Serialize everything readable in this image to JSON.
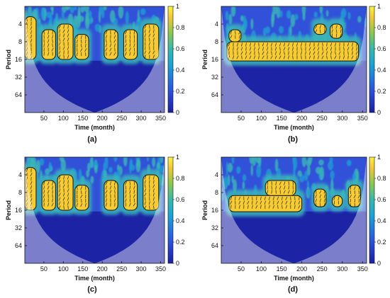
{
  "chart_data": [
    {
      "type": "heatmap",
      "panel_label": "(a)",
      "xlabel": "Time (month)",
      "ylabel": "Period",
      "xlim": [
        1,
        360
      ],
      "ylim": [
        2,
        128
      ],
      "y_scale": "log2",
      "y_reversed": true,
      "x_ticks": [
        50,
        100,
        150,
        200,
        250,
        300,
        350
      ],
      "y_ticks": [
        4,
        8,
        16,
        32,
        64
      ],
      "colorbar": {
        "min": 0,
        "max": 1,
        "ticks": [
          0,
          0.2,
          0.4,
          0.6,
          0.8,
          1
        ]
      },
      "cone_of_influence": true,
      "high_power_band_period": [
        4,
        16
      ],
      "high_power_regions": [
        {
          "x": [
            1,
            30
          ],
          "period": [
            3,
            16
          ]
        },
        {
          "x": [
            45,
            80
          ],
          "period": [
            5,
            16
          ]
        },
        {
          "x": [
            85,
            125
          ],
          "period": [
            4,
            16
          ]
        },
        {
          "x": [
            130,
            165
          ],
          "period": [
            6,
            16
          ]
        },
        {
          "x": [
            205,
            240
          ],
          "period": [
            5,
            16
          ]
        },
        {
          "x": [
            255,
            290
          ],
          "period": [
            5,
            16
          ]
        },
        {
          "x": [
            305,
            345
          ],
          "period": [
            4,
            16
          ]
        }
      ]
    },
    {
      "type": "heatmap",
      "panel_label": "(b)",
      "xlabel": "Time (month)",
      "ylabel": "Period",
      "xlim": [
        1,
        360
      ],
      "ylim": [
        2,
        128
      ],
      "y_scale": "log2",
      "y_reversed": true,
      "x_ticks": [
        50,
        100,
        150,
        200,
        250,
        300,
        350
      ],
      "y_ticks": [
        4,
        8,
        16,
        32,
        64
      ],
      "colorbar": {
        "min": 0,
        "max": 1,
        "ticks": [
          0,
          0.2,
          0.4,
          0.6,
          0.8,
          1
        ]
      },
      "cone_of_influence": true,
      "high_power_band_period": [
        8,
        16
      ],
      "high_power_regions": [
        {
          "x": [
            15,
            340
          ],
          "period": [
            8,
            17
          ]
        },
        {
          "x": [
            20,
            50
          ],
          "period": [
            5,
            8
          ]
        },
        {
          "x": [
            230,
            260
          ],
          "period": [
            4,
            6
          ]
        },
        {
          "x": [
            270,
            300
          ],
          "period": [
            4,
            7
          ]
        }
      ]
    },
    {
      "type": "heatmap",
      "panel_label": "(c)",
      "xlabel": "Time (month)",
      "ylabel": "Period",
      "xlim": [
        1,
        360
      ],
      "ylim": [
        2,
        128
      ],
      "y_scale": "log2",
      "y_reversed": true,
      "x_ticks": [
        50,
        100,
        150,
        200,
        250,
        300,
        350
      ],
      "y_ticks": [
        4,
        8,
        16,
        32,
        64
      ],
      "colorbar": {
        "min": 0,
        "max": 1,
        "ticks": [
          0,
          0.2,
          0.4,
          0.6,
          0.8,
          1
        ]
      },
      "cone_of_influence": true,
      "high_power_band_period": [
        4,
        16
      ],
      "high_power_regions": [
        {
          "x": [
            1,
            30
          ],
          "period": [
            3,
            16
          ]
        },
        {
          "x": [
            45,
            80
          ],
          "period": [
            5,
            16
          ]
        },
        {
          "x": [
            85,
            125
          ],
          "period": [
            4,
            16
          ]
        },
        {
          "x": [
            130,
            165
          ],
          "period": [
            6,
            16
          ]
        },
        {
          "x": [
            205,
            240
          ],
          "period": [
            5,
            16
          ]
        },
        {
          "x": [
            255,
            290
          ],
          "period": [
            5,
            16
          ]
        },
        {
          "x": [
            305,
            345
          ],
          "period": [
            4,
            16
          ]
        }
      ]
    },
    {
      "type": "heatmap",
      "panel_label": "(d)",
      "xlabel": "Time (month)",
      "ylabel": "Period",
      "xlim": [
        1,
        360
      ],
      "ylim": [
        2,
        128
      ],
      "y_scale": "log2",
      "y_reversed": true,
      "x_ticks": [
        50,
        100,
        150,
        200,
        250,
        300,
        350
      ],
      "y_ticks": [
        4,
        8,
        16,
        32,
        64
      ],
      "colorbar": {
        "min": 0,
        "max": 1,
        "ticks": [
          0,
          0.2,
          0.4,
          0.6,
          0.8,
          1
        ]
      },
      "cone_of_influence": true,
      "high_power_band_period": [
        8,
        16
      ],
      "high_power_regions": [
        {
          "x": [
            20,
            200
          ],
          "period": [
            9,
            17
          ]
        },
        {
          "x": [
            110,
            185
          ],
          "period": [
            5,
            9
          ]
        },
        {
          "x": [
            230,
            260
          ],
          "period": [
            7,
            14
          ]
        },
        {
          "x": [
            275,
            300
          ],
          "period": [
            9,
            14
          ]
        },
        {
          "x": [
            315,
            345
          ],
          "period": [
            6,
            14
          ]
        }
      ]
    }
  ],
  "colors": {
    "dark": "#1b1fa0",
    "blue": "#3152d8",
    "mid": "#1e9ad6",
    "cyan": "#3bb5b8",
    "green": "#5cc26f",
    "yellow": "#f7cc33",
    "bright": "#fbe93c",
    "contour": "#111111",
    "coi_shade": "rgba(255,255,255,0.42)"
  }
}
